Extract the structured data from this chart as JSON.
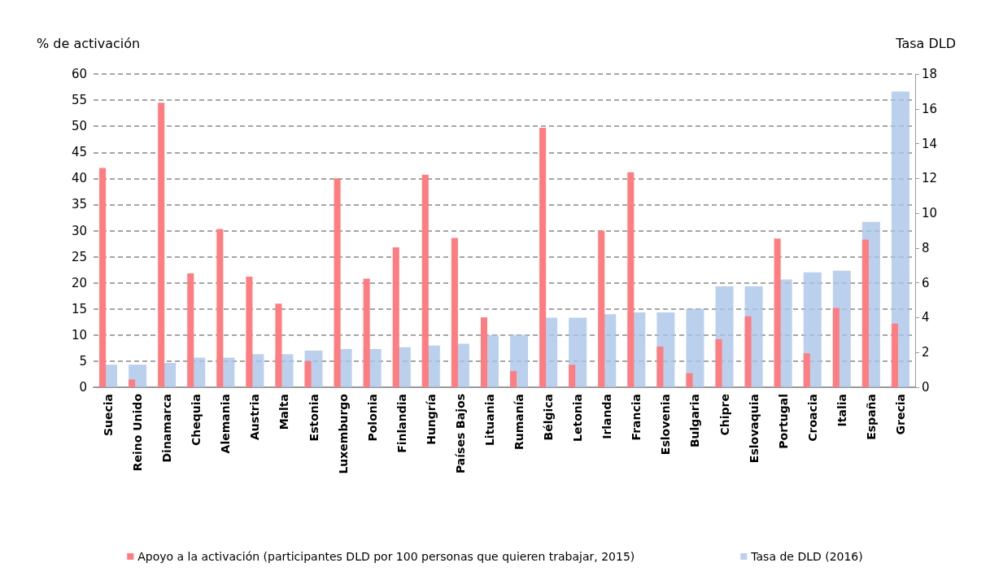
{
  "chart_data": {
    "type": "bar",
    "ylabel": "% de activación",
    "y2label": "Tasa DLD",
    "categories": [
      "Suecia",
      "Reino Unido",
      "Dinamarca",
      "Chequia",
      "Alemania",
      "Austria",
      "Malta",
      "Estonia",
      "Luxemburgo",
      "Polonia",
      "Finlandia",
      "Hungría",
      "Países Bajos",
      "Lituania",
      "Rumanía",
      "Bélgica",
      "Letonia",
      "Irlanda",
      "Francia",
      "Eslovenia",
      "Bulgaria",
      "Chipre",
      "Eslovaquia",
      "Portugal",
      "Croacia",
      "Italia",
      "España",
      "Grecia"
    ],
    "series": [
      {
        "name": "Apoyo a la activación (participantes DLD por 100 personas que quieren trabajar, 2015)",
        "color": "#ff7c80",
        "values": [
          42,
          1.5,
          54.5,
          21.8,
          30.3,
          21.2,
          16,
          5,
          40,
          20.8,
          26.8,
          40.7,
          28.6,
          13.4,
          3.1,
          49.7,
          4.3,
          30,
          41.2,
          7.8,
          2.7,
          9.2,
          13.6,
          28.5,
          6.5,
          15.2,
          28.3,
          12.2
        ]
      },
      {
        "name": "Tasa de DLD (2016)",
        "color": "#a9c4e8",
        "axis": "y2",
        "values": [
          1.3,
          1.3,
          1.4,
          1.7,
          1.7,
          1.9,
          1.9,
          2.1,
          2.2,
          2.2,
          2.3,
          2.4,
          2.5,
          3.0,
          3.0,
          4.0,
          4.0,
          4.2,
          4.3,
          4.3,
          4.5,
          5.8,
          5.8,
          6.2,
          6.6,
          6.7,
          9.5,
          17.0
        ]
      }
    ],
    "ylim": [
      0,
      60
    ],
    "yticks": [
      0,
      5,
      10,
      15,
      20,
      25,
      30,
      35,
      40,
      45,
      50,
      55,
      60
    ],
    "y2lim": [
      0,
      18
    ],
    "y2ticks": [
      0,
      2,
      4,
      6,
      8,
      10,
      12,
      14,
      16,
      18
    ],
    "grid": "y",
    "legend": "bottom"
  }
}
